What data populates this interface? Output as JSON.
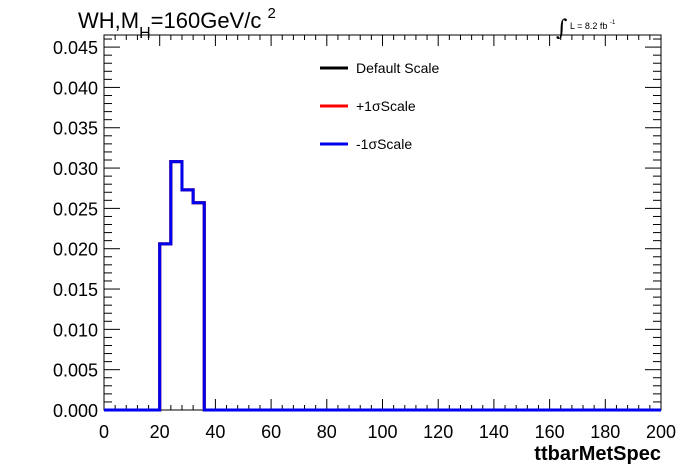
{
  "title": {
    "prefix": "WH,M",
    "subscript": "H",
    "main": "=160GeV/c",
    "superscript": "2"
  },
  "luminosity": {
    "integral": "∫",
    "text": "L = 8.2 fb",
    "superscript": "-1"
  },
  "chart_data": {
    "type": "line",
    "style": "step-histogram",
    "xlabel": "ttbarMetSpec",
    "ylabel": "",
    "xlim": [
      0,
      200
    ],
    "ylim": [
      0,
      0.0465
    ],
    "x_ticks": [
      0,
      20,
      40,
      60,
      80,
      100,
      120,
      140,
      160,
      180,
      200
    ],
    "x_tick_labels": [
      "0",
      "20",
      "40",
      "60",
      "80",
      "100",
      "120",
      "140",
      "160",
      "180",
      "200"
    ],
    "y_ticks": [
      0,
      0.005,
      0.01,
      0.015,
      0.02,
      0.025,
      0.03,
      0.035,
      0.04,
      0.045
    ],
    "y_tick_labels": [
      "0.000",
      "0.005",
      "0.010",
      "0.015",
      "0.020",
      "0.025",
      "0.030",
      "0.035",
      "0.040",
      "0.045"
    ],
    "grid": false,
    "legend_position": "top-center",
    "bin_edges": [
      0,
      4,
      8,
      12,
      16,
      20,
      24,
      28,
      32,
      36,
      40,
      44,
      48,
      52,
      56,
      60,
      64,
      68,
      72,
      76,
      80,
      84,
      88,
      92,
      96,
      100,
      104,
      108,
      112,
      116,
      120,
      124,
      128,
      132,
      136,
      140,
      144,
      148,
      152,
      156,
      160,
      164,
      168,
      172,
      176,
      180,
      184,
      188,
      192,
      196,
      200
    ],
    "series": [
      {
        "name": "Default Scale",
        "color": "#000000",
        "values": [
          0,
          0,
          0,
          0,
          0,
          0.0206,
          0.0308,
          0.0273,
          0.0257,
          0,
          0,
          0,
          0,
          0,
          0,
          0,
          0,
          0,
          0,
          0,
          0,
          0,
          0,
          0,
          0,
          0,
          0,
          0,
          0,
          0,
          0,
          0,
          0,
          0,
          0,
          0,
          0,
          0,
          0,
          0,
          0,
          0,
          0,
          0,
          0,
          0,
          0,
          0,
          0,
          0
        ]
      },
      {
        "name": "+1σScale",
        "color": "#ff0000",
        "values": [
          0,
          0,
          0,
          0,
          0,
          0.0206,
          0.0308,
          0.0273,
          0.0257,
          0,
          0,
          0,
          0,
          0,
          0,
          0,
          0,
          0,
          0,
          0,
          0,
          0,
          0,
          0,
          0,
          0,
          0,
          0,
          0,
          0,
          0,
          0,
          0,
          0,
          0,
          0,
          0,
          0,
          0,
          0,
          0,
          0,
          0,
          0,
          0,
          0,
          0,
          0,
          0,
          0
        ]
      },
      {
        "name": "-1σScale",
        "color": "#0000ee",
        "values": [
          0,
          0,
          0,
          0,
          0,
          0.0206,
          0.0308,
          0.0273,
          0.0257,
          0,
          0,
          0,
          0,
          0,
          0,
          0,
          0,
          0,
          0,
          0,
          0,
          0,
          0,
          0,
          0,
          0,
          0,
          0,
          0,
          0,
          0,
          0,
          0,
          0,
          0,
          0,
          0,
          0,
          0,
          0,
          0,
          0,
          0,
          0,
          0,
          0,
          0,
          0,
          0,
          0
        ]
      }
    ]
  }
}
